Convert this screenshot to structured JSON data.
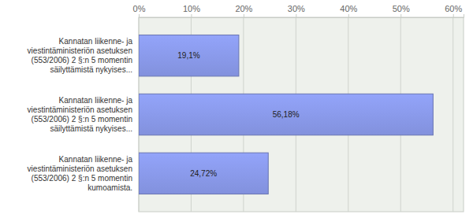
{
  "chart_data": {
    "type": "bar",
    "orientation": "horizontal",
    "categories": [
      "Kannatan liikenne- ja\nviestintäministeriön asetuksen\n(553/2006) 2 §:n 5 momentin\nsäilyttämistä nykyises...",
      "Kannatan liikenne- ja\nviestintäministeriön asetuksen\n(553/2006) 2 §:n 5 momentin\nsäilyttämistä nykyises...",
      "Kannatan liikenne- ja\nviestintäministeriön asetuksen\n(553/2006) 2 §:n 5 momentin\nkumoamista."
    ],
    "values": [
      19.1,
      56.18,
      24.72
    ],
    "value_labels": [
      "19,1%",
      "56,18%",
      "24,72%"
    ],
    "data_labels": true,
    "color": "#8291dd",
    "xlim": [
      0,
      62
    ],
    "xticks": [
      {
        "value": 0,
        "label": "0%"
      },
      {
        "value": 10,
        "label": "10%"
      },
      {
        "value": 20,
        "label": "20%"
      },
      {
        "value": 30,
        "label": "30%"
      },
      {
        "value": 40,
        "label": "40%"
      },
      {
        "value": 50,
        "label": "50%"
      },
      {
        "value": 60,
        "label": "60%"
      }
    ],
    "grid": true
  }
}
